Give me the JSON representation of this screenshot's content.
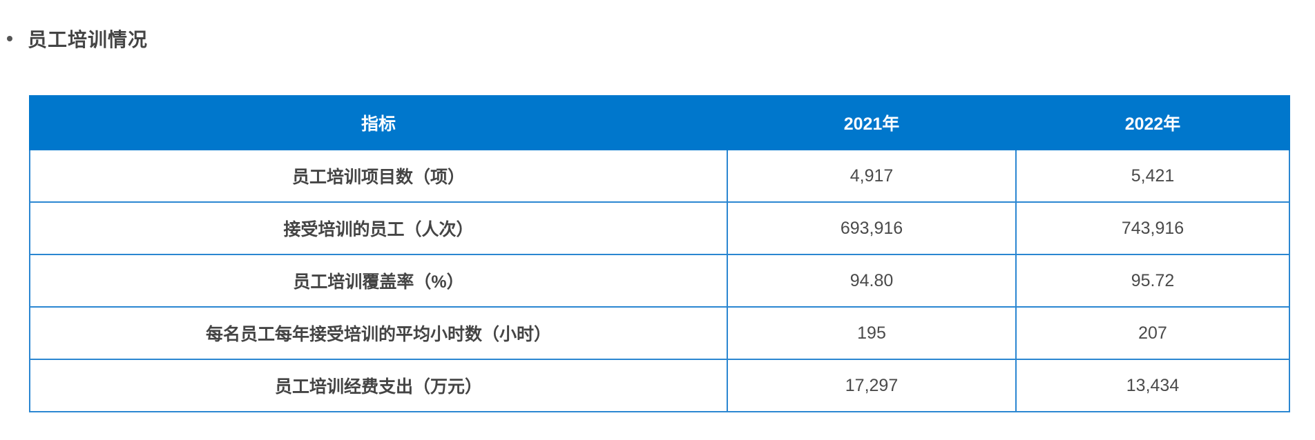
{
  "section": {
    "title": "员工培训情况"
  },
  "table": {
    "headers": [
      "指标",
      "2021年",
      "2022年"
    ],
    "rows": [
      {
        "label": "员工培训项目数（项）",
        "y2021": "4,917",
        "y2022": "5,421"
      },
      {
        "label": "接受培训的员工（人次）",
        "y2021": "693,916",
        "y2022": "743,916"
      },
      {
        "label": "员工培训覆盖率（%）",
        "y2021": "94.80",
        "y2022": "95.72"
      },
      {
        "label": "每名员工每年接受培训的平均小时数（小时）",
        "y2021": "195",
        "y2022": "207"
      },
      {
        "label": "员工培训经费支出（万元）",
        "y2021": "17,297",
        "y2022": "13,434"
      }
    ]
  },
  "colors": {
    "header_bg": "#0077cc",
    "border": "#2a86d1"
  }
}
